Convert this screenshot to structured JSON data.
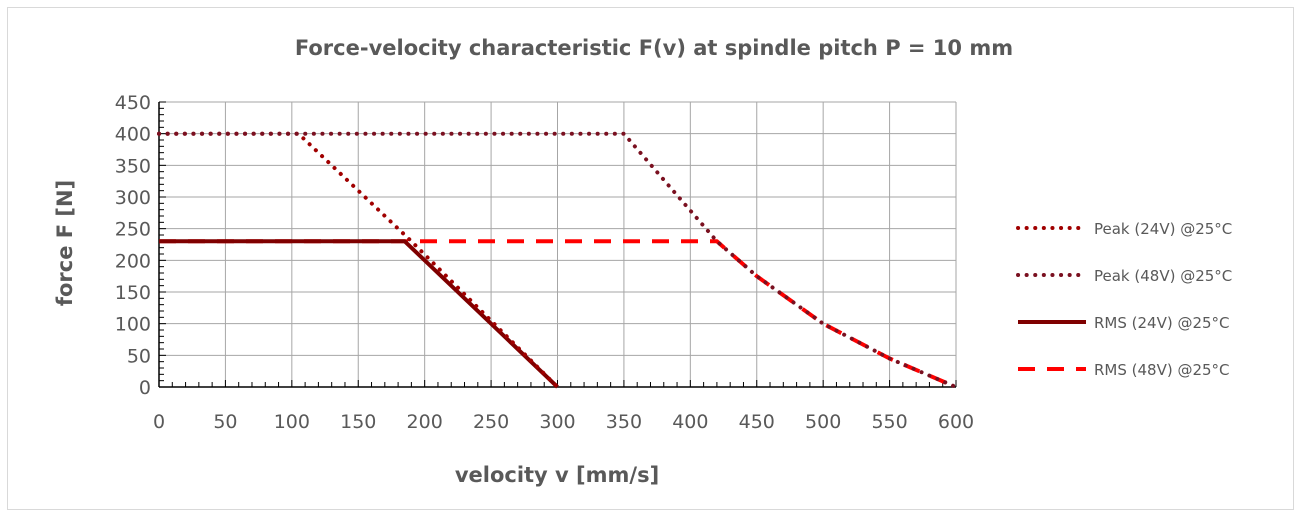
{
  "chart_data": {
    "type": "line",
    "title": "Force-velocity characteristic F(v) at spindle pitch P = 10 mm",
    "xlabel": "velocity v [mm/s]",
    "ylabel": "force F [N]",
    "xlim": [
      0,
      600
    ],
    "ylim": [
      0,
      450
    ],
    "x_ticks": [
      0,
      50,
      100,
      150,
      200,
      250,
      300,
      350,
      400,
      450,
      500,
      550,
      600
    ],
    "y_ticks": [
      0,
      50,
      100,
      150,
      200,
      250,
      300,
      350,
      400,
      450
    ],
    "grid": true,
    "legend_position": "right",
    "series": [
      {
        "name": "Peak (24V) @25°C",
        "color": "#a00000",
        "style": "dotted",
        "points": [
          [
            0,
            400
          ],
          [
            105,
            400
          ],
          [
            190,
            230
          ],
          [
            300,
            0
          ]
        ]
      },
      {
        "name": "Peak (48V) @25°C",
        "color": "#7a1020",
        "style": "dotted",
        "points": [
          [
            0,
            400
          ],
          [
            350,
            400
          ],
          [
            420,
            230
          ],
          [
            450,
            175
          ],
          [
            500,
            100
          ],
          [
            550,
            45
          ],
          [
            600,
            0
          ]
        ]
      },
      {
        "name": "RMS (24V) @25°C",
        "color": "#7f0000",
        "style": "solid",
        "points": [
          [
            0,
            230
          ],
          [
            185,
            230
          ],
          [
            300,
            0
          ]
        ]
      },
      {
        "name": "RMS (48V) @25°C",
        "color": "#ff0000",
        "style": "dashed",
        "points": [
          [
            0,
            230
          ],
          [
            420,
            230
          ],
          [
            450,
            175
          ],
          [
            500,
            100
          ],
          [
            550,
            45
          ],
          [
            600,
            0
          ]
        ]
      }
    ]
  }
}
